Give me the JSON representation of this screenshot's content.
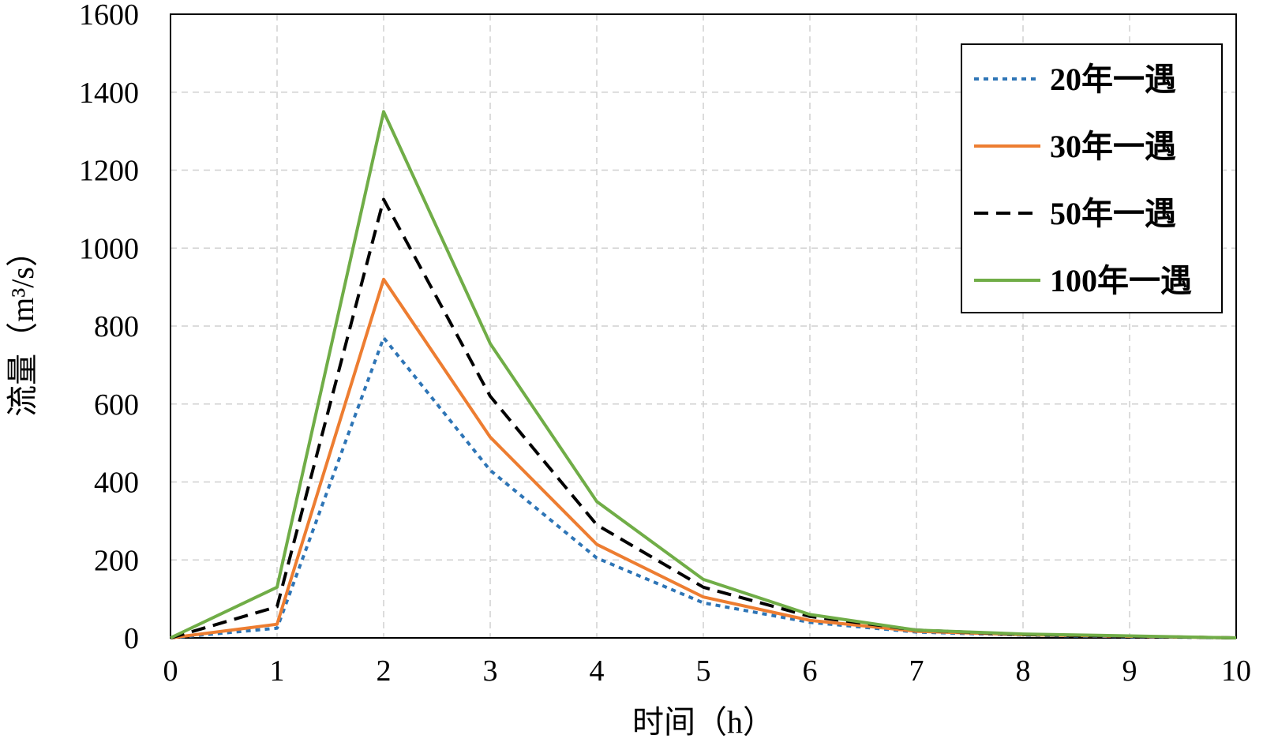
{
  "chart_data": {
    "type": "line",
    "xlabel": "时间（h）",
    "ylabel": "流量（m³/s）",
    "xlim": [
      0,
      10
    ],
    "ylim": [
      0,
      1600
    ],
    "x_ticks": [
      "0",
      "1",
      "2",
      "3",
      "4",
      "5",
      "6",
      "7",
      "8",
      "9",
      "10"
    ],
    "y_ticks": [
      "0",
      "200",
      "400",
      "600",
      "800",
      "1000",
      "1200",
      "1400",
      "1600"
    ],
    "grid": true,
    "legend_position": "top-right",
    "x": [
      0,
      1,
      2,
      3,
      4,
      5,
      6,
      7,
      8,
      9,
      10
    ],
    "series": [
      {
        "name": "20年一遇",
        "color": "#2E75B6",
        "dash": "dotted",
        "values": [
          0,
          25,
          770,
          430,
          205,
          90,
          40,
          15,
          7,
          3,
          0
        ]
      },
      {
        "name": "30年一遇",
        "color": "#ED7D31",
        "dash": "solid",
        "values": [
          0,
          35,
          920,
          515,
          240,
          105,
          45,
          17,
          8,
          4,
          0
        ]
      },
      {
        "name": "50年一遇",
        "color": "#000000",
        "dash": "dashed",
        "values": [
          0,
          80,
          1125,
          620,
          290,
          130,
          55,
          20,
          9,
          4,
          0
        ]
      },
      {
        "name": "100年一遇",
        "color": "#70AD47",
        "dash": "solid",
        "values": [
          0,
          130,
          1350,
          755,
          350,
          150,
          60,
          20,
          10,
          5,
          0
        ]
      }
    ]
  }
}
